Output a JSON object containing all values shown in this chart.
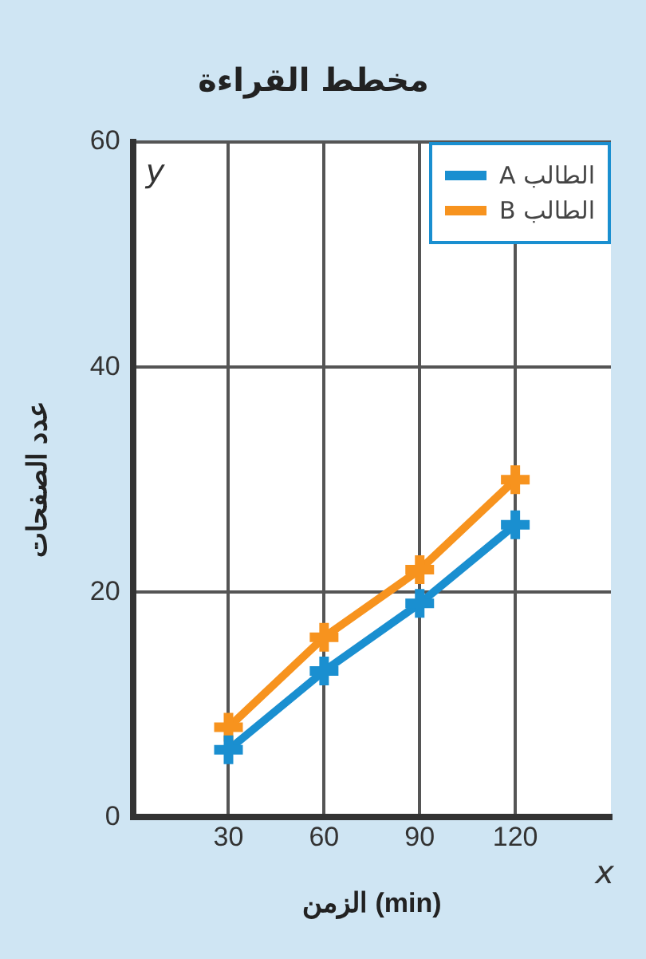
{
  "chart_data": {
    "type": "line",
    "title": "مخطط القراءة",
    "xlabel": "الزمن (min)",
    "ylabel": "عدد الصفحات",
    "x": [
      30,
      60,
      90,
      120
    ],
    "series": [
      {
        "name": "الطالب A",
        "color": "#1a8fd0",
        "values": [
          6,
          13,
          19,
          26
        ]
      },
      {
        "name": "الطالب B",
        "color": "#f7931e",
        "values": [
          8,
          16,
          22,
          30
        ]
      }
    ],
    "xlim": [
      0,
      150
    ],
    "xticks": [
      30,
      60,
      90,
      120
    ],
    "ylim": [
      0,
      60
    ],
    "yticks": [
      0,
      20,
      40,
      60
    ],
    "annotations": [
      "y",
      "x"
    ],
    "grid": true,
    "legend": "top right",
    "marker": "cross",
    "line_style": "solid"
  }
}
